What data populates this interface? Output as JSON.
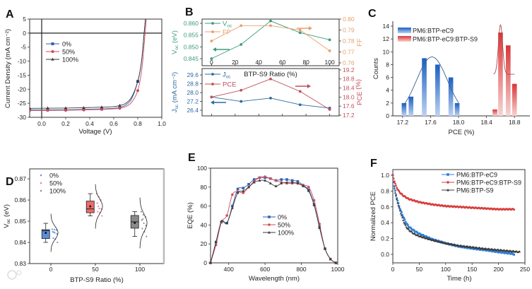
{
  "watermark": "大数跨境",
  "chart_data": [
    {
      "panel": "A",
      "type": "line",
      "xlabel": "Voltage (V)",
      "ylabel": "Current Density (mA cm⁻²)",
      "xlim": [
        -0.1,
        1.0
      ],
      "ylim": [
        -30,
        5
      ],
      "xticks": [
        "0.0",
        "0.2",
        "0.4",
        "0.6",
        "0.8",
        "1.0"
      ],
      "yticks": [
        "5",
        "0",
        "-5",
        "-10",
        "-15",
        "-20",
        "-25",
        "-30"
      ],
      "legend": "upper-left",
      "series": [
        {
          "name": "0%",
          "color": "#2f62ad",
          "marker": "square",
          "x": [
            -0.1,
            0.05,
            0.2,
            0.35,
            0.5,
            0.65,
            0.8
          ],
          "y": [
            -27.3,
            -27.3,
            -27.3,
            -27.2,
            -27.0,
            -26.5,
            -17.2
          ],
          "curve_x": [
            -0.1,
            0.2,
            0.5,
            0.6,
            0.65,
            0.7,
            0.75,
            0.8,
            0.83,
            0.853,
            0.87
          ],
          "curve_y": [
            -27.3,
            -27.3,
            -27.0,
            -26.8,
            -26.5,
            -25.6,
            -23.3,
            -17.2,
            -10.5,
            0,
            8
          ]
        },
        {
          "name": "50%",
          "color": "#d04a5c",
          "marker": "circle",
          "x": [
            -0.1,
            0.05,
            0.2,
            0.35,
            0.5,
            0.65,
            0.8
          ],
          "y": [
            -27.6,
            -27.5,
            -27.5,
            -27.4,
            -27.2,
            -26.8,
            -20.5
          ],
          "curve_x": [
            -0.1,
            0.2,
            0.5,
            0.6,
            0.65,
            0.7,
            0.75,
            0.8,
            0.835,
            0.861,
            0.878
          ],
          "curve_y": [
            -27.6,
            -27.5,
            -27.2,
            -27.0,
            -26.8,
            -26.2,
            -24.6,
            -20.5,
            -12.5,
            0,
            8
          ]
        },
        {
          "name": "100%",
          "color": "#3a3a3a",
          "marker": "triangle",
          "x": [
            -0.1,
            0.05,
            0.2,
            0.35,
            0.5,
            0.65,
            0.8
          ],
          "y": [
            -26.8,
            -26.7,
            -26.7,
            -26.6,
            -26.4,
            -25.8,
            -17.2
          ],
          "curve_x": [
            -0.1,
            0.2,
            0.5,
            0.6,
            0.65,
            0.7,
            0.75,
            0.8,
            0.83,
            0.853,
            0.87
          ],
          "curve_y": [
            -26.8,
            -26.7,
            -26.4,
            -26.2,
            -25.8,
            -25.0,
            -22.7,
            -17.2,
            -10.5,
            0,
            8
          ]
        }
      ]
    },
    {
      "panel": "B",
      "type": "line",
      "xlabel": "BTP-S9 Ratio (%)",
      "x": [
        0,
        25,
        50,
        75,
        100
      ],
      "xlim": [
        -8,
        108
      ],
      "xticks": [
        "0",
        "20",
        "40",
        "60",
        "80",
        "100"
      ],
      "top": {
        "left": {
          "name": "Voc",
          "label_main": "V",
          "label_sub": "oc",
          "label_unit": " (eV)",
          "color": "#3d9b7d",
          "ylim": [
            0.842,
            0.8618
          ],
          "yticks": [
            "0.845",
            "0.850",
            "0.855",
            "0.860"
          ],
          "values": [
            0.845,
            0.851,
            0.861,
            0.856,
            0.853
          ],
          "arrow": "left"
        },
        "right": {
          "name": "FF",
          "label_main": "FF",
          "label_sub": "",
          "label_unit": "",
          "color": "#e8a06a",
          "ylim": [
            0.7574,
            0.8
          ],
          "yticks": [
            "0.76",
            "0.77",
            "0.78",
            "0.79",
            "0.80"
          ],
          "values": [
            0.78,
            0.794,
            0.794,
            0.79,
            0.771
          ],
          "arrow": "right"
        }
      },
      "bottom": {
        "left": {
          "name": "Jsc",
          "label_main": "J",
          "label_sub": "sc",
          "label_unit": " (mA cm⁻²)",
          "color": "#2c6aa0",
          "ylim": [
            25.89,
            30.18
          ],
          "yticks": [
            "26.4",
            "27.2",
            "28.0",
            "28.8",
            "29.6"
          ],
          "values": [
            27.6,
            27.2,
            27.5,
            26.9,
            26.6
          ],
          "arrow": "left"
        },
        "right": {
          "name": "PCE",
          "label_main": "PCE",
          "label_sub": "",
          "label_unit": " (%)",
          "legend_label": "PCE",
          "color": "#c0505a",
          "ylim": [
            17.17,
            19.26
          ],
          "yticks": [
            "17.2",
            "17.6",
            "18.0",
            "18.4",
            "18.8",
            "19.2"
          ],
          "values": [
            18.0,
            18.3,
            18.8,
            18.25,
            17.45
          ],
          "arrow": "right"
        }
      }
    },
    {
      "panel": "C",
      "type": "bar",
      "xlabel": "PCE (%)",
      "ylabel": "Counts",
      "xlim": [
        17.06,
        19.02
      ],
      "ylim": [
        0,
        14.77
      ],
      "xticks": [
        "17.2",
        "17.6",
        "18.0",
        "18.4",
        "18.8"
      ],
      "yticks": [
        "0",
        "2",
        "4",
        "6",
        "8",
        "10",
        "12",
        "14"
      ],
      "bar_width": 0.067,
      "series": [
        {
          "name": "PM6:BTP-eC9",
          "color": "#1b5fc1",
          "light": "#bcd2f1",
          "x": [
            17.22,
            17.32,
            17.51,
            17.7,
            17.89,
            17.98
          ],
          "counts": [
            2,
            3,
            9,
            8,
            6,
            2
          ],
          "fit": {
            "mean": 17.62,
            "sigma": 0.22,
            "amplitude": 9.2,
            "offset": 0,
            "range": [
              17.2,
              18.0
            ]
          }
        },
        {
          "name": "PM6:BTP-eC9:BTP-S9",
          "color": "#d93636",
          "light": "#f8d3d3",
          "x": [
            18.52,
            18.6,
            18.71,
            18.8
          ],
          "counts": [
            1,
            13,
            11,
            5
          ],
          "fit": {
            "mean": 18.6,
            "sigma": 0.03,
            "amplitude": 7.7,
            "offset": 6.5,
            "range": [
              18.5,
              18.8
            ]
          }
        }
      ]
    },
    {
      "panel": "D",
      "type": "box",
      "xlabel": "BTP-S9 Ratio (%)",
      "ylabel_main": "V",
      "ylabel_sub": "oc",
      "ylabel_unit": " (eV)",
      "ylim": [
        0.83,
        0.8747
      ],
      "yticks": [
        "0.83",
        "0.84",
        "0.85",
        "0.86",
        "0.87"
      ],
      "categories": [
        "0",
        "50",
        "100"
      ],
      "groups": [
        {
          "name": "0%",
          "color": "#5b8fdc",
          "dot": "#6b9bd8",
          "q1": 0.8418,
          "median": 0.8455,
          "q3": 0.846,
          "whisker_low": 0.84,
          "whisker_high": 0.849,
          "mean": 0.8445,
          "sd": 0.003,
          "points": [
            0.8462,
            0.846,
            0.8458,
            0.845,
            0.8445,
            0.844,
            0.842,
            0.8415,
            0.84,
            0.8448
          ]
        },
        {
          "name": "50%",
          "color": "#ec6b6b",
          "dot": "#e08a95",
          "q1": 0.854,
          "median": 0.8558,
          "q3": 0.8595,
          "whisker_low": 0.8525,
          "whisker_high": 0.863,
          "mean": 0.857,
          "sd": 0.0035,
          "points": [
            0.863,
            0.8615,
            0.86,
            0.8585,
            0.856,
            0.8558,
            0.8545,
            0.854,
            0.8525,
            0.857
          ]
        },
        {
          "name": "100%",
          "color": "#8a8a8a",
          "dot": "#8f8f8f",
          "q1": 0.8467,
          "median": 0.8497,
          "q3": 0.8527,
          "whisker_low": 0.8428,
          "whisker_high": 0.8545,
          "mean": 0.8492,
          "sd": 0.004,
          "points": [
            0.8545,
            0.853,
            0.852,
            0.8505,
            0.849,
            0.848,
            0.8465,
            0.845,
            0.8428,
            0.851
          ]
        }
      ]
    },
    {
      "panel": "E",
      "type": "line",
      "xlabel": "Wavelength (nm)",
      "ylabel": "EQE (%)",
      "xlim": [
        300,
        1000
      ],
      "ylim": [
        0,
        100
      ],
      "xticks": [
        "400",
        "600",
        "800",
        "1000"
      ],
      "yticks": [
        "0",
        "20",
        "40",
        "60",
        "80",
        "100"
      ],
      "x": [
        300,
        330,
        360,
        390,
        420,
        450,
        480,
        510,
        540,
        570,
        600,
        630,
        660,
        690,
        720,
        750,
        780,
        810,
        840,
        870,
        900,
        930,
        960,
        990
      ],
      "series": [
        {
          "name": "0%",
          "color": "#2f62ad",
          "marker": "square",
          "values": [
            0,
            22,
            43,
            42,
            60,
            78,
            79,
            83,
            88,
            90,
            90,
            89,
            87,
            88,
            88,
            87,
            86,
            82,
            77,
            62,
            38,
            15,
            4,
            0
          ]
        },
        {
          "name": "50%",
          "color": "#d04a5c",
          "marker": "circle",
          "values": [
            0,
            19,
            43,
            50,
            72,
            75,
            74,
            80,
            86,
            90,
            91,
            89,
            87,
            85,
            84,
            84,
            84,
            82,
            80,
            66,
            41,
            15,
            4,
            0
          ]
        },
        {
          "name": "100%",
          "color": "#3a3a3a",
          "marker": "triangle",
          "values": [
            0,
            22,
            44,
            42,
            58,
            74,
            76,
            80,
            85,
            87,
            87,
            84,
            81,
            84,
            85,
            85,
            84,
            81,
            76,
            61,
            37,
            15,
            4,
            0
          ]
        }
      ]
    },
    {
      "panel": "F",
      "type": "line",
      "xlabel": "Time (h)",
      "ylabel": "Normalized PCE",
      "xlim": [
        0,
        250
      ],
      "ylim": [
        -0.107,
        1.071
      ],
      "xticks": [
        "0",
        "50",
        "100",
        "150",
        "200",
        "250"
      ],
      "yticks": [
        "0.0",
        "0.2",
        "0.4",
        "0.6",
        "0.8",
        "1.0"
      ],
      "series": [
        {
          "name": "PM6:BTP-eC9",
          "color": "#2f7fd6",
          "marker": "square",
          "t": [
            0,
            2,
            5,
            10,
            15,
            20,
            25,
            30,
            40,
            50,
            75,
            100,
            125,
            150,
            175,
            200,
            225,
            230
          ],
          "values": [
            1.0,
            0.9,
            0.78,
            0.65,
            0.55,
            0.47,
            0.4,
            0.35,
            0.3,
            0.26,
            0.19,
            0.14,
            0.1,
            0.075,
            0.055,
            0.03,
            0.01,
            0.0
          ]
        },
        {
          "name": "PM6:BTP-eC9:BTP-S9",
          "color": "#d93c3c",
          "marker": "circle",
          "t": [
            0,
            2,
            5,
            10,
            15,
            20,
            25,
            30,
            40,
            50,
            75,
            100,
            125,
            150,
            175,
            200,
            225,
            230
          ],
          "values": [
            1.0,
            0.95,
            0.88,
            0.81,
            0.77,
            0.74,
            0.72,
            0.7,
            0.68,
            0.66,
            0.63,
            0.61,
            0.6,
            0.59,
            0.58,
            0.57,
            0.57,
            0.57
          ]
        },
        {
          "name": "PM6:BTP-S9",
          "color": "#3a3a3a",
          "marker": "triangle",
          "t": [
            0,
            2,
            5,
            10,
            15,
            20,
            25,
            30,
            40,
            50,
            75,
            100,
            125,
            150,
            175,
            200,
            225,
            240
          ],
          "values": [
            1.0,
            0.88,
            0.76,
            0.63,
            0.52,
            0.42,
            0.35,
            0.31,
            0.26,
            0.23,
            0.18,
            0.14,
            0.11,
            0.09,
            0.07,
            0.055,
            0.04,
            0.03
          ]
        }
      ]
    }
  ]
}
